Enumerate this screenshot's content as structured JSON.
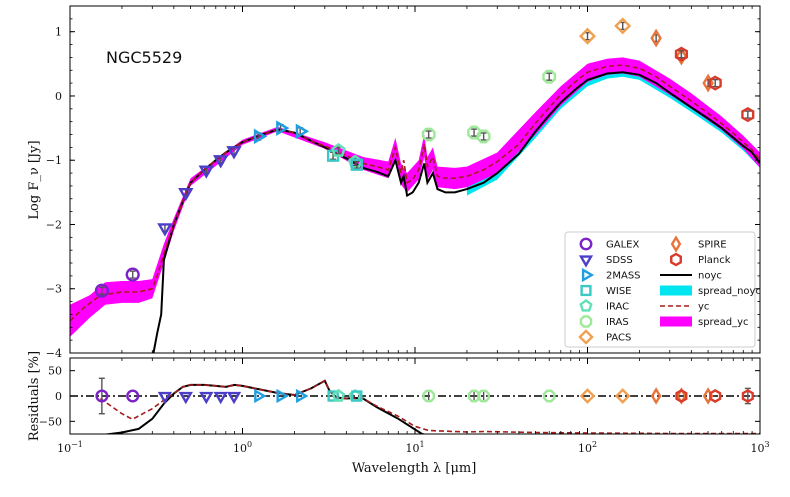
{
  "chart_data": {
    "type": "sed",
    "title": "NGC5529",
    "xlabel": "Wavelength λ [μm]",
    "ylabel_top": "Log F_ν [Jy]",
    "ylabel_bottom": "Residuals [%]",
    "x_scale": "log",
    "xlim": [
      0.1,
      1000
    ],
    "ylim_top": [
      -4,
      1.4
    ],
    "ylim_bottom": [
      -75,
      75
    ],
    "x_ticks": [
      {
        "value": 0.1,
        "base": "10",
        "exp": "−1"
      },
      {
        "value": 1,
        "base": "10",
        "exp": "0"
      },
      {
        "value": 10,
        "base": "10",
        "exp": "1"
      },
      {
        "value": 100,
        "base": "10",
        "exp": "2"
      },
      {
        "value": 1000,
        "base": "10",
        "exp": "3"
      }
    ],
    "y_ticks_top": [
      {
        "value": 1,
        "label": "1"
      },
      {
        "value": 0,
        "label": "0"
      },
      {
        "value": -1,
        "label": "−1"
      },
      {
        "value": -2,
        "label": "−2"
      },
      {
        "value": -3,
        "label": "−3"
      },
      {
        "value": -4,
        "label": "−4"
      }
    ],
    "y_ticks_bottom": [
      {
        "value": 50,
        "label": "50"
      },
      {
        "value": 0,
        "label": "0"
      },
      {
        "value": -50,
        "label": "−50"
      }
    ],
    "colors": {
      "GALEX": "#7b22c8",
      "SDSS": "#4b3fc9",
      "2MASS": "#1f9fe0",
      "WISE": "#3cc8c4",
      "IRAC": "#62e0b8",
      "IRAS": "#9fe89a",
      "PACS": "#f0a050",
      "SPIRE": "#e8743a",
      "Planck": "#d93a2a",
      "noyc": "#000000",
      "spread_noyc": "#00e5f0",
      "yc": "#a51c1c",
      "spread_yc": "#ff00ff"
    },
    "legend": {
      "left": [
        {
          "name": "GALEX",
          "shape": "circle"
        },
        {
          "name": "SDSS",
          "shape": "tri-down"
        },
        {
          "name": "2MASS",
          "shape": "tri-right"
        },
        {
          "name": "WISE",
          "shape": "square"
        },
        {
          "name": "IRAC",
          "shape": "pentagon"
        },
        {
          "name": "IRAS",
          "shape": "octagon"
        },
        {
          "name": "PACS",
          "shape": "diamond"
        }
      ],
      "right": [
        {
          "name": "SPIRE",
          "kind": "marker",
          "shape": "thin-diamond"
        },
        {
          "name": "Planck",
          "kind": "marker",
          "shape": "hexagon"
        },
        {
          "name": "noyc",
          "kind": "line"
        },
        {
          "name": "spread_noyc",
          "kind": "band"
        },
        {
          "name": "yc",
          "kind": "dashed"
        },
        {
          "name": "spread_yc",
          "kind": "band"
        }
      ]
    },
    "observations": [
      {
        "instrument": "GALEX",
        "shape": "circle",
        "x": 0.153,
        "y": -3.03,
        "res": 0,
        "err": 35
      },
      {
        "instrument": "GALEX",
        "shape": "circle",
        "x": 0.231,
        "y": -2.78,
        "res": 0
      },
      {
        "instrument": "SDSS",
        "shape": "tri-down",
        "x": 0.355,
        "y": -2.05,
        "res": 0
      },
      {
        "instrument": "SDSS",
        "shape": "tri-down",
        "x": 0.469,
        "y": -1.5,
        "res": 0
      },
      {
        "instrument": "SDSS",
        "shape": "tri-down",
        "x": 0.617,
        "y": -1.15,
        "res": 0
      },
      {
        "instrument": "SDSS",
        "shape": "tri-down",
        "x": 0.748,
        "y": -0.99,
        "res": 0
      },
      {
        "instrument": "SDSS",
        "shape": "tri-down",
        "x": 0.893,
        "y": -0.85,
        "res": 0
      },
      {
        "instrument": "2MASS",
        "shape": "tri-right",
        "x": 1.235,
        "y": -0.63,
        "res": 0
      },
      {
        "instrument": "2MASS",
        "shape": "tri-right",
        "x": 1.662,
        "y": -0.5,
        "res": 0
      },
      {
        "instrument": "2MASS",
        "shape": "tri-right",
        "x": 2.159,
        "y": -0.55,
        "res": 0
      },
      {
        "instrument": "WISE",
        "shape": "square",
        "x": 3.35,
        "y": -0.93,
        "res": 0
      },
      {
        "instrument": "IRAC",
        "shape": "pentagon",
        "x": 3.6,
        "y": -0.85,
        "res": 0
      },
      {
        "instrument": "IRAC",
        "shape": "pentagon",
        "x": 4.5,
        "y": -1.03,
        "res": 0
      },
      {
        "instrument": "WISE",
        "shape": "square",
        "x": 4.6,
        "y": -1.07,
        "res": 0
      },
      {
        "instrument": "IRAS",
        "shape": "octagon",
        "x": 12.0,
        "y": -0.6,
        "res": 0,
        "err": 10
      },
      {
        "instrument": "IRAS",
        "shape": "octagon",
        "x": 22.0,
        "y": -0.57,
        "res": 0,
        "err": 10
      },
      {
        "instrument": "IRAS",
        "shape": "octagon",
        "x": 25.0,
        "y": -0.63,
        "res": 0,
        "err": 10
      },
      {
        "instrument": "IRAS",
        "shape": "octagon",
        "x": 60.0,
        "y": 0.3,
        "res": 0
      },
      {
        "instrument": "PACS",
        "shape": "diamond",
        "x": 100.0,
        "y": 0.93,
        "res": 0
      },
      {
        "instrument": "PACS",
        "shape": "diamond",
        "x": 160.0,
        "y": 1.09,
        "res": 0
      },
      {
        "instrument": "SPIRE",
        "shape": "thin-diamond",
        "x": 250.0,
        "y": 0.9,
        "res": 0
      },
      {
        "instrument": "SPIRE",
        "shape": "thin-diamond",
        "x": 350.0,
        "y": 0.62,
        "res": 0
      },
      {
        "instrument": "Planck",
        "shape": "hexagon",
        "x": 350.0,
        "y": 0.65,
        "res": 0
      },
      {
        "instrument": "SPIRE",
        "shape": "thin-diamond",
        "x": 500.0,
        "y": 0.2,
        "res": 0
      },
      {
        "instrument": "Planck",
        "shape": "hexagon",
        "x": 550.0,
        "y": 0.2,
        "res": 0
      },
      {
        "instrument": "Planck",
        "shape": "hexagon",
        "x": 850.0,
        "y": -0.29,
        "res": 0,
        "err": 15
      }
    ],
    "model_noyc": [
      [
        0.3,
        -4.1
      ],
      [
        0.32,
        -3.7
      ],
      [
        0.338,
        -3.4
      ],
      [
        0.35,
        -2.55
      ],
      [
        0.4,
        -2.0
      ],
      [
        0.45,
        -1.65
      ],
      [
        0.5,
        -1.35
      ],
      [
        0.6,
        -1.15
      ],
      [
        0.7,
        -1.0
      ],
      [
        0.8,
        -0.88
      ],
      [
        1.0,
        -0.72
      ],
      [
        1.3,
        -0.6
      ],
      [
        1.6,
        -0.52
      ],
      [
        2.0,
        -0.57
      ],
      [
        2.5,
        -0.7
      ],
      [
        3.0,
        -0.8
      ],
      [
        3.5,
        -0.9
      ],
      [
        4.0,
        -0.97
      ],
      [
        5.0,
        -1.12
      ],
      [
        6.0,
        -1.18
      ],
      [
        7.0,
        -1.25
      ],
      [
        7.7,
        -1.0
      ],
      [
        8.3,
        -1.35
      ],
      [
        8.6,
        -1.25
      ],
      [
        9.0,
        -1.55
      ],
      [
        9.7,
        -1.5
      ],
      [
        10.5,
        -1.35
      ],
      [
        11.3,
        -1.05
      ],
      [
        11.8,
        -1.35
      ],
      [
        12.7,
        -1.2
      ],
      [
        13.5,
        -1.45
      ],
      [
        15,
        -1.5
      ],
      [
        17,
        -1.5
      ],
      [
        20,
        -1.45
      ],
      [
        25,
        -1.35
      ],
      [
        30,
        -1.2
      ],
      [
        40,
        -0.9
      ],
      [
        50,
        -0.55
      ],
      [
        60,
        -0.3
      ],
      [
        70,
        -0.1
      ],
      [
        85,
        0.1
      ],
      [
        100,
        0.25
      ],
      [
        130,
        0.35
      ],
      [
        160,
        0.37
      ],
      [
        200,
        0.33
      ],
      [
        250,
        0.2
      ],
      [
        300,
        0.05
      ],
      [
        400,
        -0.18
      ],
      [
        500,
        -0.35
      ],
      [
        600,
        -0.5
      ],
      [
        700,
        -0.65
      ],
      [
        800,
        -0.78
      ],
      [
        900,
        -0.88
      ],
      [
        1000,
        -1.05
      ]
    ],
    "model_yc": [
      [
        0.1,
        -3.5
      ],
      [
        0.12,
        -3.3
      ],
      [
        0.15,
        -3.1
      ],
      [
        0.2,
        -3.05
      ],
      [
        0.25,
        -3.05
      ],
      [
        0.3,
        -3.0
      ],
      [
        0.32,
        -2.8
      ],
      [
        0.35,
        -2.45
      ],
      [
        0.4,
        -2.0
      ],
      [
        0.45,
        -1.65
      ],
      [
        0.5,
        -1.35
      ],
      [
        0.6,
        -1.15
      ],
      [
        0.7,
        -1.0
      ],
      [
        0.8,
        -0.88
      ],
      [
        1.0,
        -0.72
      ],
      [
        1.3,
        -0.6
      ],
      [
        1.6,
        -0.52
      ],
      [
        2.0,
        -0.57
      ],
      [
        2.5,
        -0.7
      ],
      [
        3.0,
        -0.78
      ],
      [
        3.5,
        -0.86
      ],
      [
        4.0,
        -0.93
      ],
      [
        5.0,
        -1.05
      ],
      [
        6.0,
        -1.1
      ],
      [
        7.0,
        -1.15
      ],
      [
        7.7,
        -0.8
      ],
      [
        8.3,
        -1.2
      ],
      [
        8.6,
        -1.0
      ],
      [
        9.0,
        -1.35
      ],
      [
        9.7,
        -1.3
      ],
      [
        10.5,
        -1.15
      ],
      [
        11.3,
        -0.75
      ],
      [
        11.8,
        -1.1
      ],
      [
        12.7,
        -0.95
      ],
      [
        13.5,
        -1.25
      ],
      [
        15,
        -1.28
      ],
      [
        17,
        -1.28
      ],
      [
        20,
        -1.25
      ],
      [
        25,
        -1.15
      ],
      [
        30,
        -1.02
      ],
      [
        40,
        -0.75
      ],
      [
        50,
        -0.42
      ],
      [
        60,
        -0.18
      ],
      [
        70,
        0.02
      ],
      [
        85,
        0.22
      ],
      [
        100,
        0.37
      ],
      [
        130,
        0.46
      ],
      [
        160,
        0.48
      ],
      [
        200,
        0.43
      ],
      [
        250,
        0.3
      ],
      [
        300,
        0.15
      ],
      [
        400,
        -0.08
      ],
      [
        500,
        -0.27
      ],
      [
        600,
        -0.43
      ],
      [
        700,
        -0.58
      ],
      [
        800,
        -0.72
      ],
      [
        900,
        -0.84
      ],
      [
        1000,
        -1.0
      ]
    ],
    "spread_noyc_lower": [
      [
        20,
        -1.55
      ],
      [
        30,
        -1.3
      ],
      [
        50,
        -0.65
      ],
      [
        70,
        -0.2
      ],
      [
        100,
        0.15
      ],
      [
        130,
        0.27
      ],
      [
        160,
        0.3
      ],
      [
        200,
        0.25
      ],
      [
        300,
        -0.03
      ],
      [
        400,
        -0.25
      ],
      [
        600,
        -0.57
      ],
      [
        800,
        -0.85
      ],
      [
        1000,
        -1.12
      ]
    ],
    "spread_noyc_upper": [
      [
        20,
        -1.4
      ],
      [
        30,
        -1.13
      ],
      [
        50,
        -0.48
      ],
      [
        70,
        -0.02
      ],
      [
        100,
        0.32
      ],
      [
        130,
        0.42
      ],
      [
        160,
        0.45
      ],
      [
        200,
        0.4
      ],
      [
        300,
        0.12
      ],
      [
        400,
        -0.1
      ],
      [
        600,
        -0.43
      ],
      [
        800,
        -0.72
      ],
      [
        1000,
        -1.0
      ]
    ],
    "spread_yc_lower": [
      [
        0.1,
        -3.75
      ],
      [
        0.13,
        -3.45
      ],
      [
        0.16,
        -3.25
      ],
      [
        0.2,
        -3.22
      ],
      [
        0.25,
        -3.22
      ],
      [
        0.3,
        -3.15
      ],
      [
        0.35,
        -2.6
      ],
      [
        0.4,
        -2.1
      ],
      [
        0.5,
        -1.4
      ],
      [
        1.0,
        -0.76
      ],
      [
        1.6,
        -0.55
      ],
      [
        3.0,
        -0.82
      ],
      [
        5.0,
        -1.15
      ],
      [
        7.0,
        -1.28
      ],
      [
        7.7,
        -0.95
      ],
      [
        8.3,
        -1.38
      ],
      [
        9.0,
        -1.5
      ],
      [
        10.5,
        -1.3
      ],
      [
        11.3,
        -0.95
      ],
      [
        11.8,
        -1.3
      ],
      [
        12.7,
        -1.15
      ],
      [
        13.5,
        -1.42
      ],
      [
        17,
        -1.45
      ],
      [
        20,
        -1.42
      ],
      [
        30,
        -1.2
      ],
      [
        50,
        -0.6
      ],
      [
        70,
        -0.15
      ],
      [
        100,
        0.22
      ],
      [
        130,
        0.33
      ],
      [
        160,
        0.35
      ],
      [
        200,
        0.3
      ],
      [
        300,
        0.02
      ],
      [
        400,
        -0.2
      ],
      [
        600,
        -0.53
      ],
      [
        800,
        -0.82
      ],
      [
        1000,
        -1.12
      ]
    ],
    "spread_yc_upper": [
      [
        0.1,
        -3.25
      ],
      [
        0.13,
        -3.1
      ],
      [
        0.16,
        -2.9
      ],
      [
        0.2,
        -2.88
      ],
      [
        0.25,
        -2.88
      ],
      [
        0.3,
        -2.85
      ],
      [
        0.35,
        -2.3
      ],
      [
        0.4,
        -1.9
      ],
      [
        0.5,
        -1.28
      ],
      [
        1.0,
        -0.68
      ],
      [
        1.6,
        -0.48
      ],
      [
        3.0,
        -0.72
      ],
      [
        5.0,
        -0.95
      ],
      [
        7.0,
        -1.02
      ],
      [
        7.7,
        -0.65
      ],
      [
        8.3,
        -1.05
      ],
      [
        9.0,
        -1.2
      ],
      [
        10.5,
        -1.0
      ],
      [
        11.3,
        -0.6
      ],
      [
        11.8,
        -0.95
      ],
      [
        12.7,
        -0.8
      ],
      [
        13.5,
        -1.1
      ],
      [
        17,
        -1.12
      ],
      [
        20,
        -1.1
      ],
      [
        30,
        -0.88
      ],
      [
        50,
        -0.25
      ],
      [
        70,
        0.15
      ],
      [
        100,
        0.5
      ],
      [
        130,
        0.58
      ],
      [
        160,
        0.6
      ],
      [
        200,
        0.55
      ],
      [
        300,
        0.27
      ],
      [
        400,
        0.04
      ],
      [
        600,
        -0.32
      ],
      [
        800,
        -0.62
      ],
      [
        1000,
        -0.88
      ]
    ],
    "residual_noyc": [
      [
        0.1,
        -85
      ],
      [
        0.2,
        -72
      ],
      [
        0.25,
        -65
      ],
      [
        0.3,
        -45
      ],
      [
        0.35,
        -15
      ],
      [
        0.4,
        5
      ],
      [
        0.45,
        18
      ],
      [
        0.5,
        22
      ],
      [
        0.6,
        22
      ],
      [
        0.7,
        20
      ],
      [
        0.8,
        18
      ],
      [
        0.9,
        22
      ],
      [
        1.0,
        20
      ],
      [
        1.3,
        12
      ],
      [
        1.6,
        6
      ],
      [
        2.0,
        2
      ],
      [
        2.5,
        15
      ],
      [
        3.0,
        30
      ],
      [
        3.2,
        10
      ],
      [
        3.5,
        -3
      ],
      [
        4.0,
        -5
      ],
      [
        4.5,
        -4
      ],
      [
        5.0,
        -5
      ],
      [
        6.0,
        -22
      ],
      [
        8.0,
        -45
      ],
      [
        11.0,
        -75
      ],
      [
        13.0,
        -80
      ],
      [
        20,
        -80
      ],
      [
        30,
        -77
      ],
      [
        50,
        -78
      ],
      [
        100,
        -77
      ],
      [
        300,
        -77
      ],
      [
        1000,
        -77
      ]
    ],
    "residual_yc": [
      [
        0.15,
        -5
      ],
      [
        0.2,
        -35
      ],
      [
        0.23,
        -46
      ],
      [
        0.3,
        -25
      ],
      [
        0.35,
        -8
      ],
      [
        0.4,
        5
      ],
      [
        0.45,
        18
      ],
      [
        0.5,
        22
      ],
      [
        0.6,
        22
      ],
      [
        0.7,
        20
      ],
      [
        0.8,
        18
      ],
      [
        0.9,
        22
      ],
      [
        1.0,
        20
      ],
      [
        1.3,
        12
      ],
      [
        1.6,
        6
      ],
      [
        2.0,
        2
      ],
      [
        2.5,
        15
      ],
      [
        3.0,
        30
      ],
      [
        3.2,
        10
      ],
      [
        3.5,
        -3
      ],
      [
        4.0,
        -5
      ],
      [
        4.5,
        -4
      ],
      [
        5.0,
        -5
      ],
      [
        6.0,
        -20
      ],
      [
        8.0,
        -40
      ],
      [
        10.0,
        -60
      ],
      [
        12.0,
        -68
      ],
      [
        20,
        -71
      ],
      [
        25,
        -70
      ],
      [
        50,
        -72
      ],
      [
        100,
        -73
      ],
      [
        300,
        -74
      ],
      [
        1000,
        -74
      ]
    ]
  }
}
